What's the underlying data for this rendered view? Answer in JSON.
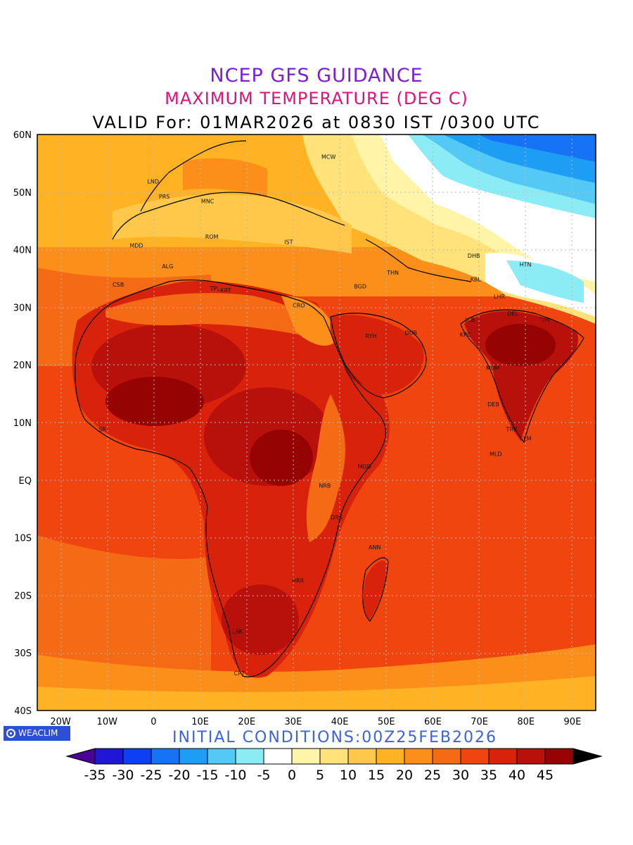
{
  "header": {
    "line1": "NCEP GFS GUIDANCE",
    "line2": "MAXIMUM TEMPERATURE (DEG C)",
    "line3": "VALID For: 01MAR2026 at 0830 IST /0300 UTC"
  },
  "map": {
    "lat_labels": [
      "60N",
      "50N",
      "40N",
      "30N",
      "20N",
      "10N",
      "EQ",
      "10S",
      "20S",
      "30S",
      "40S"
    ],
    "lon_labels": [
      "20W",
      "10W",
      "0",
      "10E",
      "20E",
      "30E",
      "40E",
      "50E",
      "60E",
      "70E",
      "80E",
      "90E"
    ],
    "cities": [
      {
        "name": "MCW",
        "lon": 37.6,
        "lat": 55.8
      },
      {
        "name": "LND",
        "lon": -0.1,
        "lat": 51.5
      },
      {
        "name": "PRS",
        "lon": 2.3,
        "lat": 48.9
      },
      {
        "name": "MNC",
        "lon": 11.6,
        "lat": 48.1
      },
      {
        "name": "ROM",
        "lon": 12.5,
        "lat": 41.9
      },
      {
        "name": "MDD",
        "lon": -3.7,
        "lat": 40.4
      },
      {
        "name": "IST",
        "lon": 29.0,
        "lat": 41.0
      },
      {
        "name": "ALG",
        "lon": 3.0,
        "lat": 36.8
      },
      {
        "name": "CSB",
        "lon": -7.6,
        "lat": 33.6
      },
      {
        "name": "TPL",
        "lon": 13.2,
        "lat": 32.9
      },
      {
        "name": "KRT",
        "lon": 15.5,
        "lat": 32.6
      },
      {
        "name": "CRO",
        "lon": 31.2,
        "lat": 30.0
      },
      {
        "name": "BGD",
        "lon": 44.4,
        "lat": 33.3
      },
      {
        "name": "THN",
        "lon": 51.4,
        "lat": 35.7
      },
      {
        "name": "DHB",
        "lon": 68.8,
        "lat": 38.6
      },
      {
        "name": "HTN",
        "lon": 79.9,
        "lat": 37.1
      },
      {
        "name": "KBL",
        "lon": 69.2,
        "lat": 34.5
      },
      {
        "name": "RYH",
        "lon": 46.7,
        "lat": 24.7
      },
      {
        "name": "DUB",
        "lon": 55.3,
        "lat": 25.2
      },
      {
        "name": "JCB",
        "lon": 68.0,
        "lat": 27.5
      },
      {
        "name": "KRC",
        "lon": 67.0,
        "lat": 24.9
      },
      {
        "name": "MUM",
        "lon": 72.9,
        "lat": 19.1
      },
      {
        "name": "DEL",
        "lon": 77.2,
        "lat": 28.6
      },
      {
        "name": "LHR",
        "lon": 74.3,
        "lat": 31.5
      },
      {
        "name": "TIM",
        "lon": 84.0,
        "lat": 27.5
      },
      {
        "name": "DEB",
        "lon": 73.0,
        "lat": 12.8
      },
      {
        "name": "TRV",
        "lon": 76.9,
        "lat": 8.5
      },
      {
        "name": "CLM",
        "lon": 79.9,
        "lat": 6.9
      },
      {
        "name": "MLD",
        "lon": 73.5,
        "lat": 4.2
      },
      {
        "name": "MGD",
        "lon": 45.3,
        "lat": 2.0
      },
      {
        "name": "NRB",
        "lon": 36.8,
        "lat": -1.3
      },
      {
        "name": "DRS",
        "lon": 39.3,
        "lat": -6.8
      },
      {
        "name": "ANN",
        "lon": 47.5,
        "lat": -12.0
      },
      {
        "name": "HRR",
        "lon": 31.0,
        "lat": -17.8
      },
      {
        "name": "LSK",
        "lon": 18.0,
        "lat": -26.6
      },
      {
        "name": "CPT",
        "lon": 18.4,
        "lat": -33.9
      },
      {
        "name": "SR",
        "lon": -11.0,
        "lat": 8.5
      }
    ]
  },
  "legend": {
    "colors": [
      "#4b0096",
      "#1f16d6",
      "#0d40f5",
      "#1673f5",
      "#1e9df5",
      "#55c9f5",
      "#8cecf5",
      "#ffffff",
      "#fff4a8",
      "#ffe27a",
      "#ffc84a",
      "#ffb224",
      "#fb8f1a",
      "#f56a14",
      "#f0450f",
      "#d9220c",
      "#b8100a",
      "#960303",
      "#000000"
    ],
    "labels": [
      "-35",
      "-30",
      "-25",
      "-20",
      "-15",
      "-10",
      "-5",
      "0",
      "5",
      "10",
      "15",
      "20",
      "25",
      "30",
      "35",
      "40",
      "45"
    ]
  },
  "footer": {
    "badge": "WEACLIM",
    "init": "INITIAL CONDITIONS:00Z25FEB2026"
  }
}
